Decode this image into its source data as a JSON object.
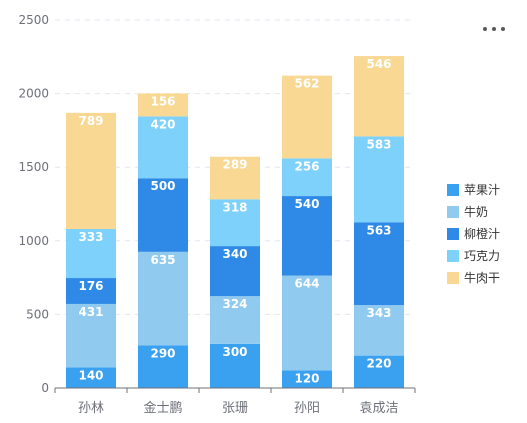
{
  "chart_data": {
    "type": "bar",
    "stacked": true,
    "categories": [
      "孙林",
      "金士鹏",
      "张珊",
      "孙阳",
      "袁成洁"
    ],
    "series": [
      {
        "name": "苹果汁",
        "color": "#3aa0f0",
        "values": [
          140,
          290,
          300,
          120,
          220
        ]
      },
      {
        "name": "牛奶",
        "color": "#90caef",
        "values": [
          431,
          635,
          324,
          644,
          343
        ]
      },
      {
        "name": "柳橙汁",
        "color": "#2e8ae6",
        "values": [
          176,
          500,
          340,
          540,
          563
        ]
      },
      {
        "name": "巧克力",
        "color": "#7dd1fb",
        "values": [
          333,
          420,
          318,
          256,
          583
        ]
      },
      {
        "name": "牛肉干",
        "color": "#f8d893",
        "values": [
          789,
          156,
          289,
          562,
          546
        ]
      }
    ],
    "ylim": [
      0,
      2500
    ],
    "yticks": [
      0,
      500,
      1000,
      1500,
      2000,
      2500
    ],
    "grid": true,
    "legend_position": "right",
    "xlabel": "",
    "ylabel": "",
    "title": ""
  },
  "toolbar": {
    "more_icon": "more-horizontal-icon"
  }
}
